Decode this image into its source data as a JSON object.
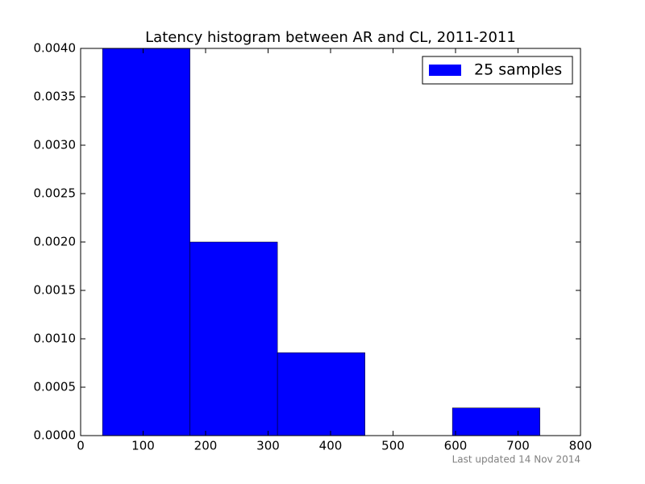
{
  "chart_data": {
    "type": "histogram",
    "title": "Latency histogram between AR and CL, 2011-2011",
    "bins": [
      35,
      175,
      315,
      455,
      595,
      735
    ],
    "series": [
      {
        "name": "25 samples",
        "color": "#0000ff",
        "values": [
          0.004,
          0.002,
          0.000857,
          0,
          0.000286
        ]
      }
    ],
    "xlim": [
      0,
      800
    ],
    "xticks": [
      0,
      100,
      200,
      300,
      400,
      500,
      600,
      700,
      800
    ],
    "ylim": [
      0,
      0.004
    ],
    "yticks": [
      {
        "value": 0,
        "label": "0.0000"
      },
      {
        "value": 0.0005,
        "label": "0.0005"
      },
      {
        "value": 0.001,
        "label": "0.0010"
      },
      {
        "value": 0.0015,
        "label": "0.0015"
      },
      {
        "value": 0.002,
        "label": "0.0020"
      },
      {
        "value": 0.0025,
        "label": "0.0025"
      },
      {
        "value": 0.003,
        "label": "0.0030"
      },
      {
        "value": 0.0035,
        "label": "0.0035"
      },
      {
        "value": 0.004,
        "label": "0.0040"
      }
    ],
    "grid": false,
    "legend": "upper right",
    "footnote": "Last updated 14 Nov 2014"
  }
}
